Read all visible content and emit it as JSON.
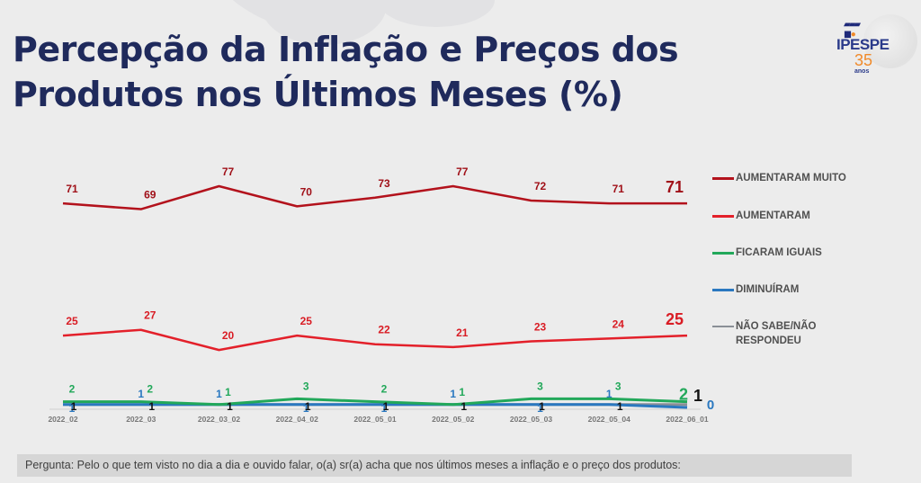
{
  "page": {
    "title_line1": "Percepção da Inflação e Preços dos",
    "title_line2": "Produtos nos Últimos Meses (%)",
    "footer_question": "Pergunta:  Pelo o que tem visto no dia a dia e ouvido falar, o(a) sr(a) acha que nos últimos meses a inflação e o preço dos produtos:"
  },
  "logo": {
    "name": "IPESPE",
    "number": "35",
    "subtitle": "anos",
    "colors": {
      "name": "#2a3a8a",
      "number": "#f08a2a"
    }
  },
  "chart_data": {
    "type": "line",
    "title": "Percepção da Inflação e Preços dos Produtos nos Últimos Meses (%)",
    "xlabel": "",
    "ylabel": "",
    "ylim": [
      0,
      80
    ],
    "grid": false,
    "legend_position": "right",
    "categories": [
      "2022_02",
      "2022_03",
      "2022_03_02",
      "2022_04_02",
      "2022_05_01",
      "2022_05_02",
      "2022_05_03",
      "2022_05_04",
      "2022_06_01"
    ],
    "series": [
      {
        "name": "AUMENTARAM MUITO",
        "color": "#b3121c",
        "values": [
          71,
          69,
          77,
          70,
          73,
          77,
          72,
          71,
          71
        ]
      },
      {
        "name": "AUMENTARAM",
        "color": "#e3202a",
        "values": [
          25,
          27,
          20,
          25,
          22,
          21,
          23,
          24,
          25
        ]
      },
      {
        "name": "FICARAM IGUAIS",
        "color": "#22a85a",
        "values": [
          2,
          2,
          1,
          3,
          2,
          1,
          3,
          3,
          2
        ]
      },
      {
        "name": "DIMINUÍRAM",
        "color": "#2a78c0",
        "values": [
          1,
          1,
          1,
          1,
          1,
          1,
          1,
          1,
          0
        ]
      },
      {
        "name": "NÃO SABE/NÃO RESPONDEU",
        "color": "#8a8f96",
        "values": [
          1,
          1,
          1,
          1,
          1,
          1,
          1,
          1,
          1
        ]
      }
    ]
  }
}
